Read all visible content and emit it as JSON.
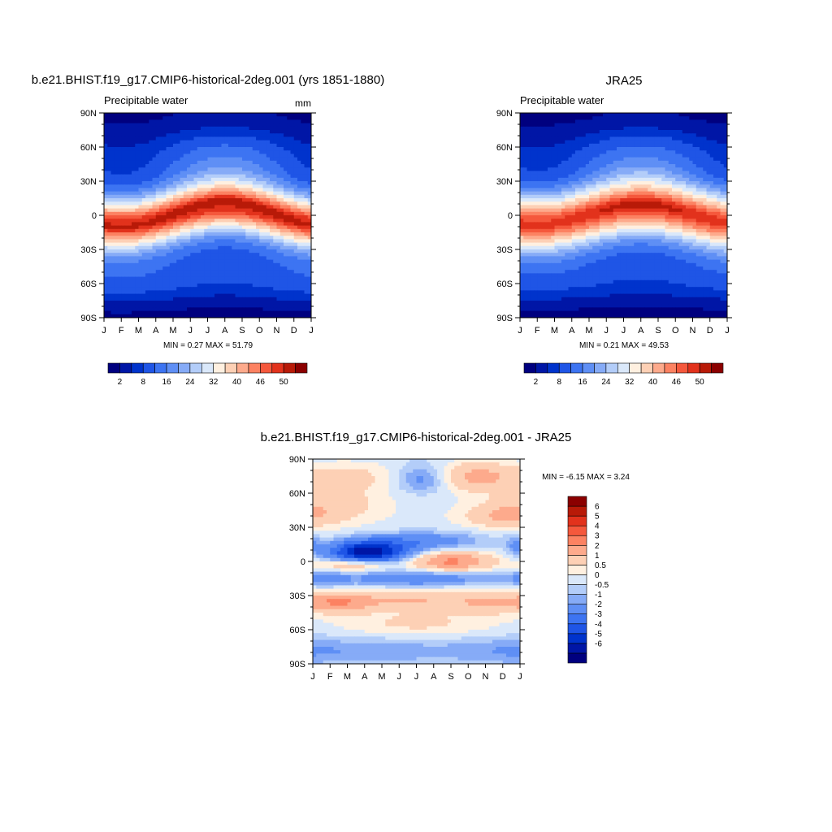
{
  "figure": {
    "panels": [
      {
        "title": "b.e21.BHIST.f19_g17.CMIP6-historical-2deg.001 (yrs 1851-1880)",
        "subtitle": "Precipitable water",
        "units": "mm",
        "stats": "MIN =   0.27 MAX =  51.79"
      },
      {
        "title": "JRA25",
        "subtitle": "Precipitable water",
        "units": "",
        "stats": "MIN =   0.21 MAX =  49.53"
      },
      {
        "title": "b.e21.BHIST.f19_g17.CMIP6-historical-2deg.001 - JRA25",
        "subtitle": "",
        "units": "",
        "stats": "MIN =  -6.15 MAX =   3.24"
      }
    ]
  },
  "chart_data": [
    {
      "type": "heatmap",
      "title": "b.e21.BHIST.f19_g17.CMIP6-historical-2deg.001 (yrs 1851-1880)",
      "subtitle": "Precipitable water",
      "units": "mm",
      "x": [
        "J",
        "F",
        "M",
        "A",
        "M",
        "J",
        "J",
        "A",
        "S",
        "O",
        "N",
        "D",
        "J"
      ],
      "y_ticks": [
        "90N",
        "60N",
        "30N",
        "0",
        "30S",
        "60S",
        "90S"
      ],
      "ylim": [
        -90,
        90
      ],
      "levels": [
        2,
        5,
        8,
        12,
        16,
        20,
        24,
        28,
        32,
        36,
        40,
        43,
        46,
        48,
        50
      ],
      "colorbar_labels": [
        "2",
        "8",
        "16",
        "24",
        "32",
        "40",
        "46",
        "50"
      ],
      "colors": [
        "#00007f",
        "#0016a6",
        "#0033cc",
        "#1f55e6",
        "#3d74f2",
        "#5f8ff5",
        "#86abf7",
        "#b3cdf9",
        "#dae8fa",
        "#fff0e0",
        "#fdd0b5",
        "#fdaa8c",
        "#fc8262",
        "#f5583c",
        "#e2321c",
        "#b81a08",
        "#8b0000"
      ],
      "min": 0.27,
      "max": 51.79,
      "field": {
        "equator_max": 48,
        "equator_lat_amp": 8,
        "equator_lat_phase_month": 7,
        "band_width_deg": 20,
        "north_pole": 1.5,
        "north_seasonal_amp": 24,
        "north_width_deg": 42,
        "south_pole": 1.0,
        "south_seasonal_amp": 7,
        "south_width_deg": 30
      }
    },
    {
      "type": "heatmap",
      "title": "JRA25",
      "subtitle": "Precipitable water",
      "x": [
        "J",
        "F",
        "M",
        "A",
        "M",
        "J",
        "J",
        "A",
        "S",
        "O",
        "N",
        "D",
        "J"
      ],
      "y_ticks": [
        "90N",
        "60N",
        "30N",
        "0",
        "30S",
        "60S",
        "90S"
      ],
      "ylim": [
        -90,
        90
      ],
      "levels": [
        2,
        5,
        8,
        12,
        16,
        20,
        24,
        28,
        32,
        36,
        40,
        43,
        46,
        48,
        50
      ],
      "colorbar_labels": [
        "2",
        "8",
        "16",
        "24",
        "32",
        "40",
        "46",
        "50"
      ],
      "colors": [
        "#00007f",
        "#0016a6",
        "#0033cc",
        "#1f55e6",
        "#3d74f2",
        "#5f8ff5",
        "#86abf7",
        "#b3cdf9",
        "#dae8fa",
        "#fff0e0",
        "#fdd0b5",
        "#fdaa8c",
        "#fc8262",
        "#f5583c",
        "#e2321c",
        "#b81a08",
        "#8b0000"
      ],
      "min": 0.21,
      "max": 49.53,
      "field": {
        "equator_max": 46.5,
        "equator_lat_amp": 7,
        "equator_lat_phase_month": 7,
        "band_width_deg": 22,
        "north_pole": 1.3,
        "north_seasonal_amp": 23,
        "north_width_deg": 40,
        "south_pole": 0.8,
        "south_seasonal_amp": 6,
        "south_width_deg": 30
      }
    },
    {
      "type": "heatmap",
      "title": "b.e21.BHIST.f19_g17.CMIP6-historical-2deg.001 - JRA25",
      "x": [
        "J",
        "F",
        "M",
        "A",
        "M",
        "J",
        "J",
        "A",
        "S",
        "O",
        "N",
        "D",
        "J"
      ],
      "y_ticks": [
        "90N",
        "60N",
        "30N",
        "0",
        "30S",
        "60S",
        "90S"
      ],
      "ylim": [
        -90,
        90
      ],
      "levels": [
        -6,
        -5,
        -4,
        -3,
        -2,
        -1,
        -0.5,
        0,
        0.5,
        1,
        2,
        3,
        4,
        5,
        6
      ],
      "colorbar_labels": [
        "6",
        "5",
        "4",
        "3",
        "2",
        "1",
        "0.5",
        "0",
        "-0.5",
        "-1",
        "-2",
        "-3",
        "-4",
        "-5",
        "-6"
      ],
      "colors": [
        "#00007f",
        "#0016a6",
        "#0033cc",
        "#1f55e6",
        "#3d74f2",
        "#5f8ff5",
        "#86abf7",
        "#b3cdf9",
        "#dae8fa",
        "#fff0e0",
        "#fdd0b5",
        "#fdaa8c",
        "#fc8262",
        "#f5583c",
        "#e2321c",
        "#b81a08",
        "#8b0000"
      ],
      "min": -6.15,
      "max": 3.24,
      "anomalies": [
        {
          "month": 3.2,
          "lat": 8,
          "amp": -6.1,
          "dx": 1.6,
          "dy": 7
        },
        {
          "month": 6.5,
          "lat": 18,
          "amp": -2.0,
          "dx": 2.5,
          "dy": 6
        },
        {
          "month": 6.3,
          "lat": 72,
          "amp": -1.5,
          "dx": 1.0,
          "dy": 8
        },
        {
          "month": 6.0,
          "lat": -15,
          "amp": -2.3,
          "dx": 3.2,
          "dy": 5
        },
        {
          "month": 0.5,
          "lat": -15,
          "amp": -1.6,
          "dx": 1.0,
          "dy": 5
        },
        {
          "month": 8.0,
          "lat": 0,
          "amp": 2.8,
          "dx": 1.6,
          "dy": 6
        },
        {
          "month": 2.5,
          "lat": -3,
          "amp": 2.2,
          "dx": 1.4,
          "dy": 4
        },
        {
          "month": 1.5,
          "lat": -36,
          "amp": 2.6,
          "dx": 1.5,
          "dy": 6
        },
        {
          "month": 5.8,
          "lat": -34,
          "amp": 1.6,
          "dx": 2.0,
          "dy": 6
        },
        {
          "month": 10.0,
          "lat": -36,
          "amp": 1.5,
          "dx": 1.5,
          "dy": 7
        },
        {
          "month": 11.0,
          "lat": 40,
          "amp": 1.6,
          "dx": 1.5,
          "dy": 7
        },
        {
          "month": 1.0,
          "lat": 50,
          "amp": 1.2,
          "dx": 2.0,
          "dy": 10
        },
        {
          "month": 9.5,
          "lat": 75,
          "amp": 2.2,
          "dx": 1.5,
          "dy": 9
        },
        {
          "month": 2.0,
          "lat": 75,
          "amp": 1.2,
          "dx": 2.0,
          "dy": 10
        },
        {
          "month": 6.0,
          "lat": -55,
          "amp": 0.9,
          "dx": 3.0,
          "dy": 8
        },
        {
          "month": 4.0,
          "lat": -78,
          "amp": -0.9,
          "dx": 4.0,
          "dy": 8
        },
        {
          "month": 11.0,
          "lat": -78,
          "amp": -0.8,
          "dx": 2.0,
          "dy": 8
        },
        {
          "month": 11.8,
          "lat": 15,
          "amp": -1.2,
          "dx": 0.5,
          "dy": 6
        }
      ],
      "background": 0.45
    }
  ]
}
